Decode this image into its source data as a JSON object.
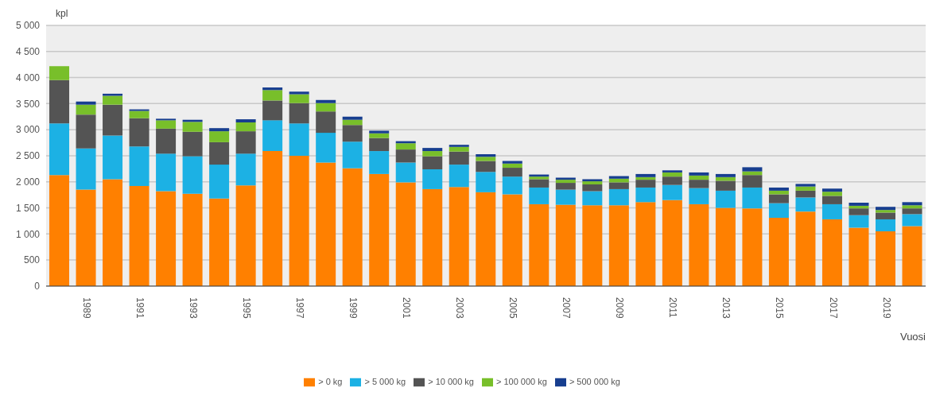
{
  "chart_data": {
    "type": "bar",
    "stacked": true,
    "ylabel": "kpl",
    "xlabel": "Vuosi",
    "categories": [
      null,
      "1989",
      null,
      "1991",
      null,
      "1993",
      null,
      "1995",
      null,
      "1997",
      null,
      "1999",
      null,
      "2001",
      null,
      "2003",
      null,
      "2005",
      null,
      "2007",
      null,
      "2009",
      null,
      "2011",
      null,
      "2013",
      null,
      "2015",
      null,
      "2017",
      null,
      "2019",
      null
    ],
    "series": [
      {
        "name": "> 0 kg",
        "color": "#ff8000",
        "values": [
          2130,
          1850,
          2050,
          1920,
          1820,
          1770,
          1680,
          1930,
          2590,
          2500,
          2370,
          2260,
          2150,
          1990,
          1860,
          1900,
          1800,
          1760,
          1570,
          1560,
          1550,
          1550,
          1610,
          1650,
          1570,
          1500,
          1490,
          1310,
          1430,
          1280,
          1120,
          1050,
          1150
        ]
      },
      {
        "name": "> 5 000 kg",
        "color": "#1cb1e4",
        "values": [
          990,
          790,
          840,
          760,
          720,
          720,
          650,
          610,
          590,
          620,
          570,
          510,
          440,
          380,
          380,
          430,
          390,
          340,
          320,
          290,
          270,
          310,
          280,
          290,
          310,
          330,
          400,
          280,
          270,
          290,
          240,
          230,
          230
        ]
      },
      {
        "name": "> 10 000 kg",
        "color": "#545454",
        "values": [
          830,
          650,
          590,
          540,
          480,
          470,
          430,
          430,
          380,
          390,
          410,
          320,
          250,
          250,
          250,
          250,
          210,
          170,
          160,
          130,
          130,
          130,
          150,
          160,
          160,
          190,
          240,
          170,
          130,
          160,
          130,
          130,
          110
        ]
      },
      {
        "name": "> 100 000 kg",
        "color": "#78bf2a",
        "values": [
          270,
          190,
          170,
          140,
          160,
          190,
          210,
          170,
          200,
          170,
          160,
          100,
          90,
          120,
          100,
          90,
          80,
          80,
          50,
          60,
          60,
          70,
          50,
          80,
          80,
          70,
          70,
          70,
          80,
          80,
          50,
          50,
          60
        ]
      },
      {
        "name": "> 500 000 kg",
        "color": "#173e8f",
        "values": [
          0,
          60,
          40,
          30,
          30,
          40,
          60,
          60,
          50,
          50,
          60,
          60,
          50,
          40,
          60,
          40,
          50,
          50,
          40,
          40,
          40,
          50,
          60,
          40,
          60,
          60,
          80,
          60,
          50,
          60,
          60,
          60,
          60
        ]
      }
    ],
    "ylim": [
      0,
      5000
    ],
    "yticks": [
      0,
      500,
      {
        "value": 1000,
        "label": "1 000"
      },
      {
        "value": 1500,
        "label": "1 500"
      },
      {
        "value": 2000,
        "label": "2 000"
      },
      {
        "value": 2500,
        "label": "2 500"
      },
      {
        "value": 3000,
        "label": "3 000"
      },
      {
        "value": 3500,
        "label": "3 500"
      },
      {
        "value": 4000,
        "label": "4 000"
      },
      {
        "value": 4500,
        "label": "4 500"
      },
      {
        "value": 5000,
        "label": "5 000"
      }
    ],
    "grid": "y",
    "legend": "bottom"
  }
}
